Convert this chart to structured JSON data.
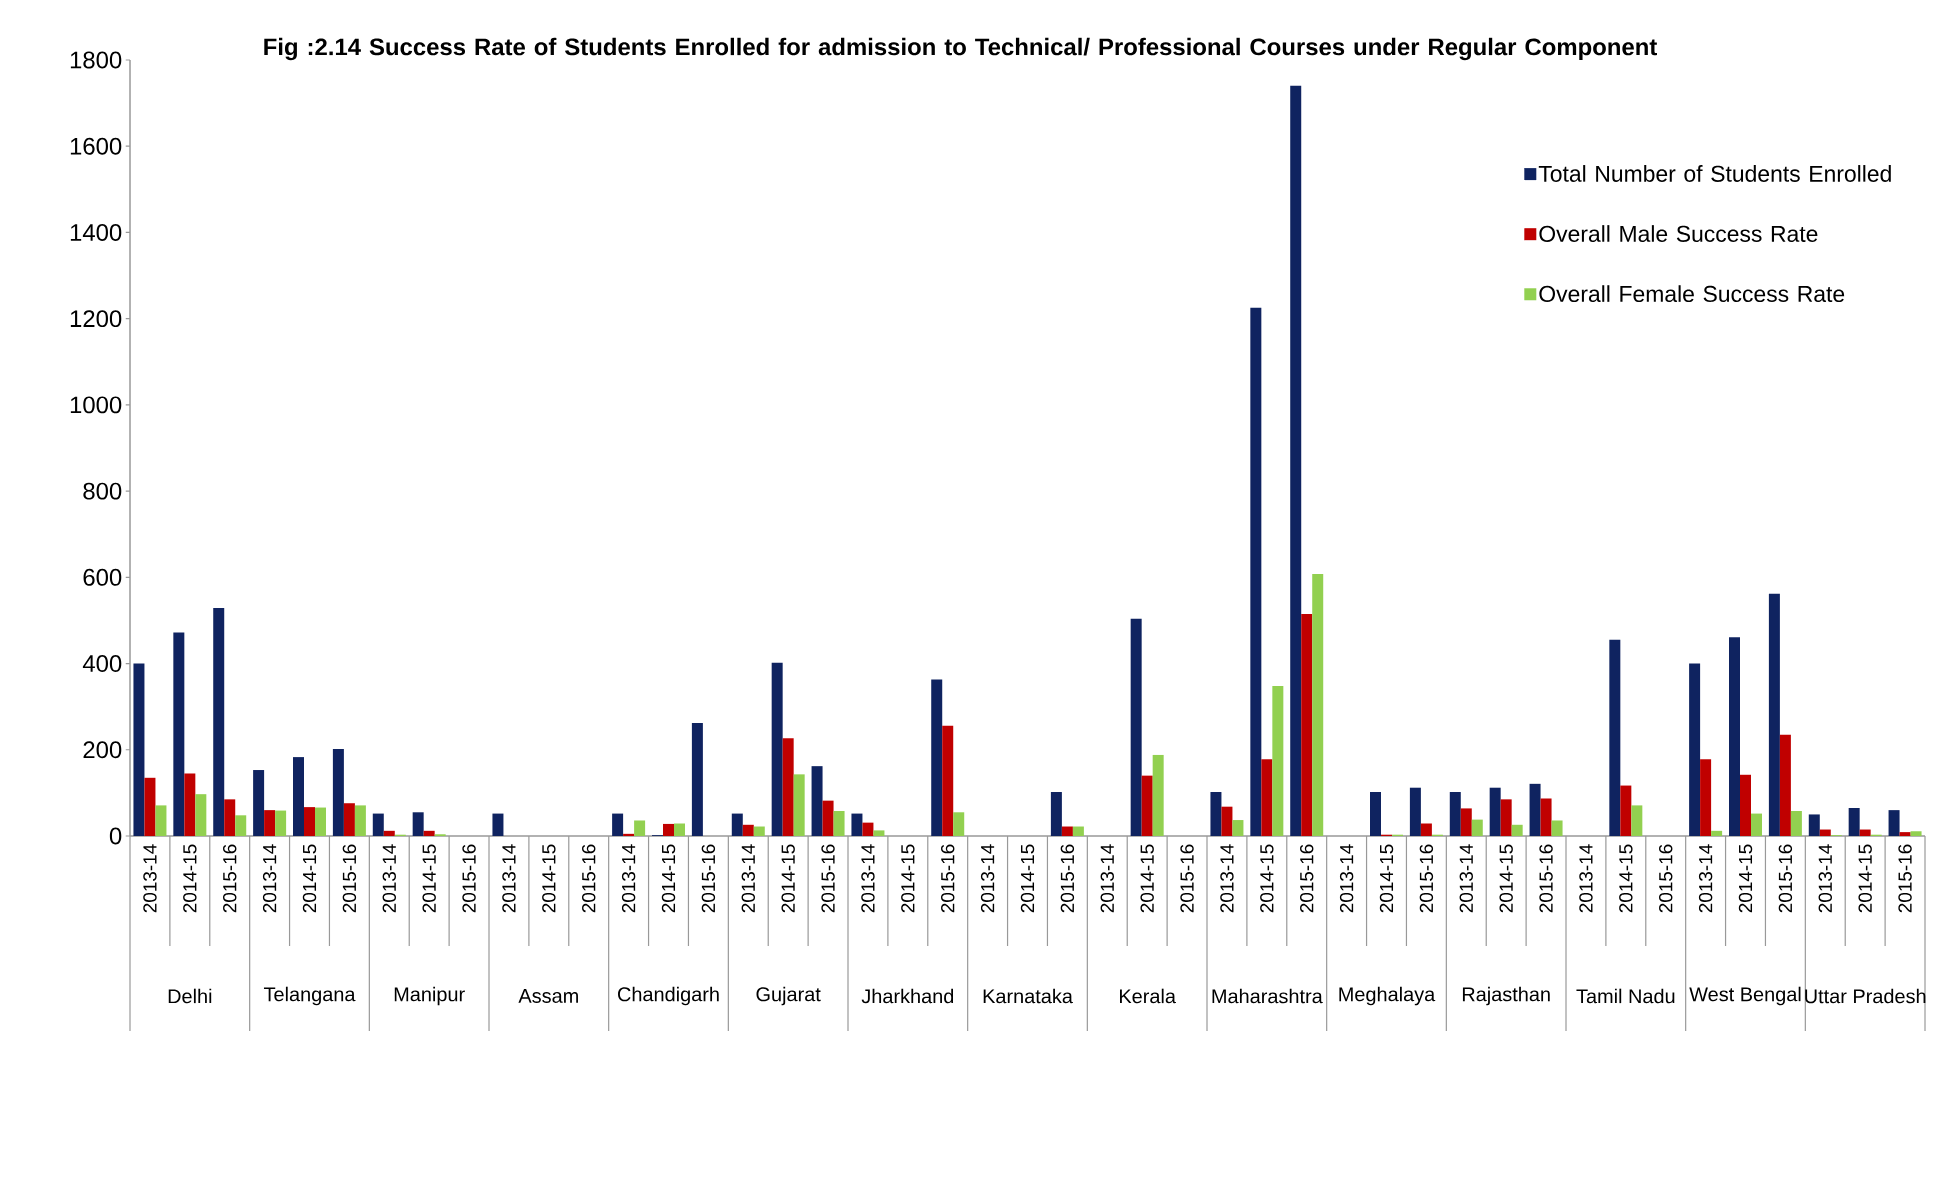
{
  "chart_data": {
    "type": "bar",
    "title": "Fig :2.14  Success Rate of Students Enrolled for admission to Technical/ Professional Courses under Regular Component",
    "categories": [
      "2013-14",
      "2014-15",
      "2015-16",
      "2013-14",
      "2014-15",
      "2015-16",
      "2013-14",
      "2014-15",
      "2015-16",
      "2013-14",
      "2014-15",
      "2015-16",
      "2013-14",
      "2014-15",
      "2015-16",
      "2013-14",
      "2014-15",
      "2015-16",
      "2013-14",
      "2014-15",
      "2015-16",
      "2013-14",
      "2014-15",
      "2015-16",
      "2013-14",
      "2014-15",
      "2015-16",
      "2013-14",
      "2014-15",
      "2015-16",
      "2013-14",
      "2014-15",
      "2015-16",
      "2013-14",
      "2014-15",
      "2015-16",
      "2013-14",
      "2014-15",
      "2015-16",
      "2013-14",
      "2014-15",
      "2015-16",
      "2013-14",
      "2014-15",
      "2015-16"
    ],
    "annotations": [
      "Delhi",
      "Telangana",
      "Manipur",
      "Assam",
      "Chandigarh",
      "Gujarat",
      "Jharkhand",
      "Karnataka",
      "Kerala",
      "Maharashtra",
      "Meghalaya",
      "Rajasthan",
      "Tamil Nadu",
      "West Bengal",
      "Uttar Pradesh"
    ],
    "series": [
      {
        "name": "Total Number of Students Enrolled",
        "color": "#0f2360",
        "values": [
          400,
          472,
          529,
          153,
          183,
          202,
          52,
          55,
          0,
          52,
          0,
          0,
          52,
          2,
          262,
          52,
          402,
          162,
          52,
          0,
          363,
          0,
          0,
          102,
          0,
          504,
          0,
          102,
          1225,
          1740,
          0,
          102,
          112,
          102,
          112,
          121,
          0,
          455,
          0,
          400,
          461,
          562,
          50,
          65,
          60
        ]
      },
      {
        "name": "Overall Male Success Rate",
        "color": "#c00000",
        "values": [
          135,
          145,
          85,
          60,
          67,
          76,
          12,
          12,
          0,
          0,
          0,
          0,
          5,
          28,
          0,
          26,
          227,
          82,
          31,
          0,
          256,
          0,
          0,
          22,
          0,
          140,
          0,
          68,
          178,
          515,
          0,
          3,
          29,
          64,
          85,
          87,
          0,
          117,
          0,
          178,
          142,
          235,
          15,
          15,
          9
        ]
      },
      {
        "name": "Overall Female Success Rate",
        "color": "#92d050",
        "values": [
          71,
          97,
          48,
          59,
          66,
          71,
          3,
          4,
          0,
          0,
          0,
          0,
          36,
          29,
          0,
          22,
          143,
          58,
          13,
          0,
          55,
          0,
          0,
          22,
          0,
          188,
          0,
          37,
          348,
          608,
          0,
          3,
          3,
          38,
          26,
          36,
          0,
          71,
          0,
          12,
          52,
          58,
          2,
          3,
          11
        ]
      }
    ],
    "ylim": [
      0,
      1800
    ],
    "yticks": [
      0,
      200,
      400,
      600,
      800,
      1000,
      1200,
      1400,
      1600,
      1800
    ],
    "grid": false,
    "legend": "top right"
  }
}
